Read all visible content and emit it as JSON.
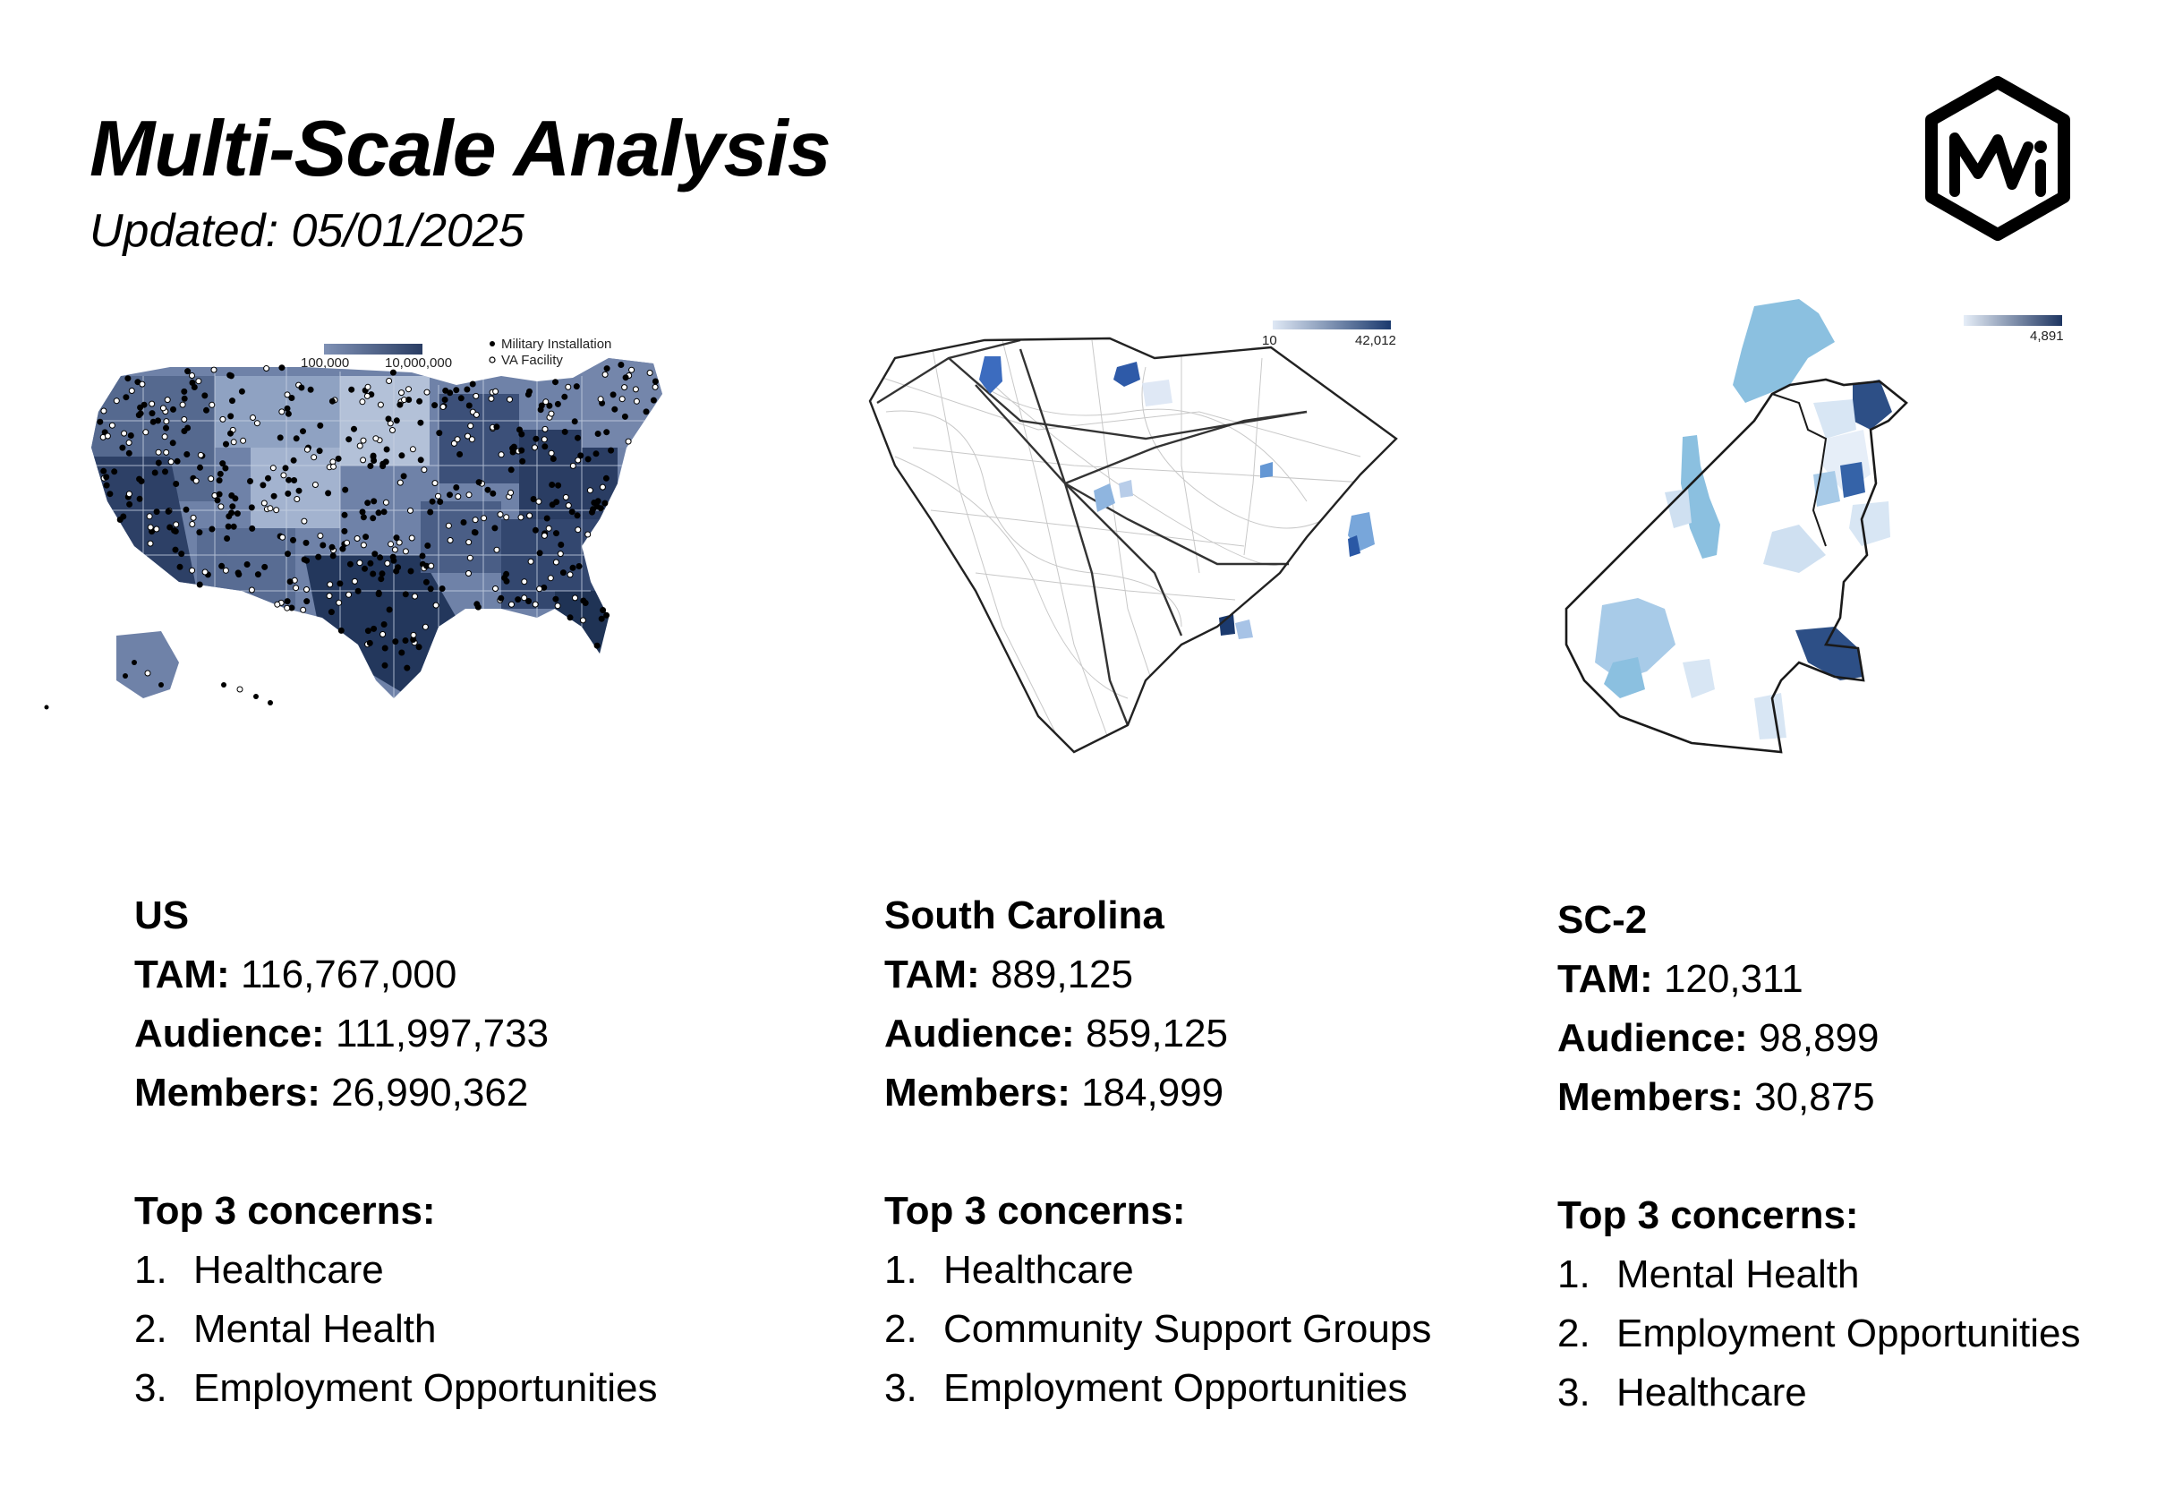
{
  "header": {
    "title": "Multi-Scale Analysis",
    "updated": "Updated: 05/01/2025",
    "logo_text": "MWi"
  },
  "maps": {
    "us": {
      "legend_min": "100,000",
      "legend_max": "10,000,000",
      "legend_marker_1": "Military Installation",
      "legend_marker_2": "VA Facility",
      "colors": {
        "low": "#a9b7d0",
        "high": "#1f3355"
      }
    },
    "sc": {
      "legend_min": "10",
      "legend_max": "42,012",
      "colors": {
        "low": "#dfe8f5",
        "high": "#1b3a6e"
      }
    },
    "sc2": {
      "legend_max": "4,891",
      "colors": {
        "low": "#e6eef8",
        "high": "#1e3561"
      }
    }
  },
  "panels": [
    {
      "region": "US",
      "tam_label": "TAM:",
      "tam": "116,767,000",
      "audience_label": "Audience:",
      "audience": "111,997,733",
      "members_label": "Members:",
      "members": "26,990,362",
      "concerns_heading": "Top 3 concerns:",
      "concerns": [
        {
          "num": "1.",
          "text": "Healthcare"
        },
        {
          "num": "2.",
          "text": "Mental Health"
        },
        {
          "num": "3.",
          "text": "Employment Opportunities"
        }
      ]
    },
    {
      "region": "South Carolina",
      "tam_label": "TAM:",
      "tam": "889,125",
      "audience_label": "Audience:",
      "audience": "859,125",
      "members_label": "Members:",
      "members": "184,999",
      "concerns_heading": "Top 3 concerns:",
      "concerns": [
        {
          "num": "1.",
          "text": "Healthcare"
        },
        {
          "num": "2.",
          "text": "Community Support Groups"
        },
        {
          "num": "3.",
          "text": "Employment Opportunities"
        }
      ]
    },
    {
      "region": "SC-2",
      "tam_label": "TAM:",
      "tam": "120,311",
      "audience_label": "Audience:",
      "audience": "98,899",
      "members_label": "Members:",
      "members": "30,875",
      "concerns_heading": "Top 3 concerns:",
      "concerns": [
        {
          "num": "1.",
          "text": "Mental Health"
        },
        {
          "num": "2.",
          "text": "Employment Opportunities"
        },
        {
          "num": "3.",
          "text": "Healthcare"
        }
      ]
    }
  ]
}
